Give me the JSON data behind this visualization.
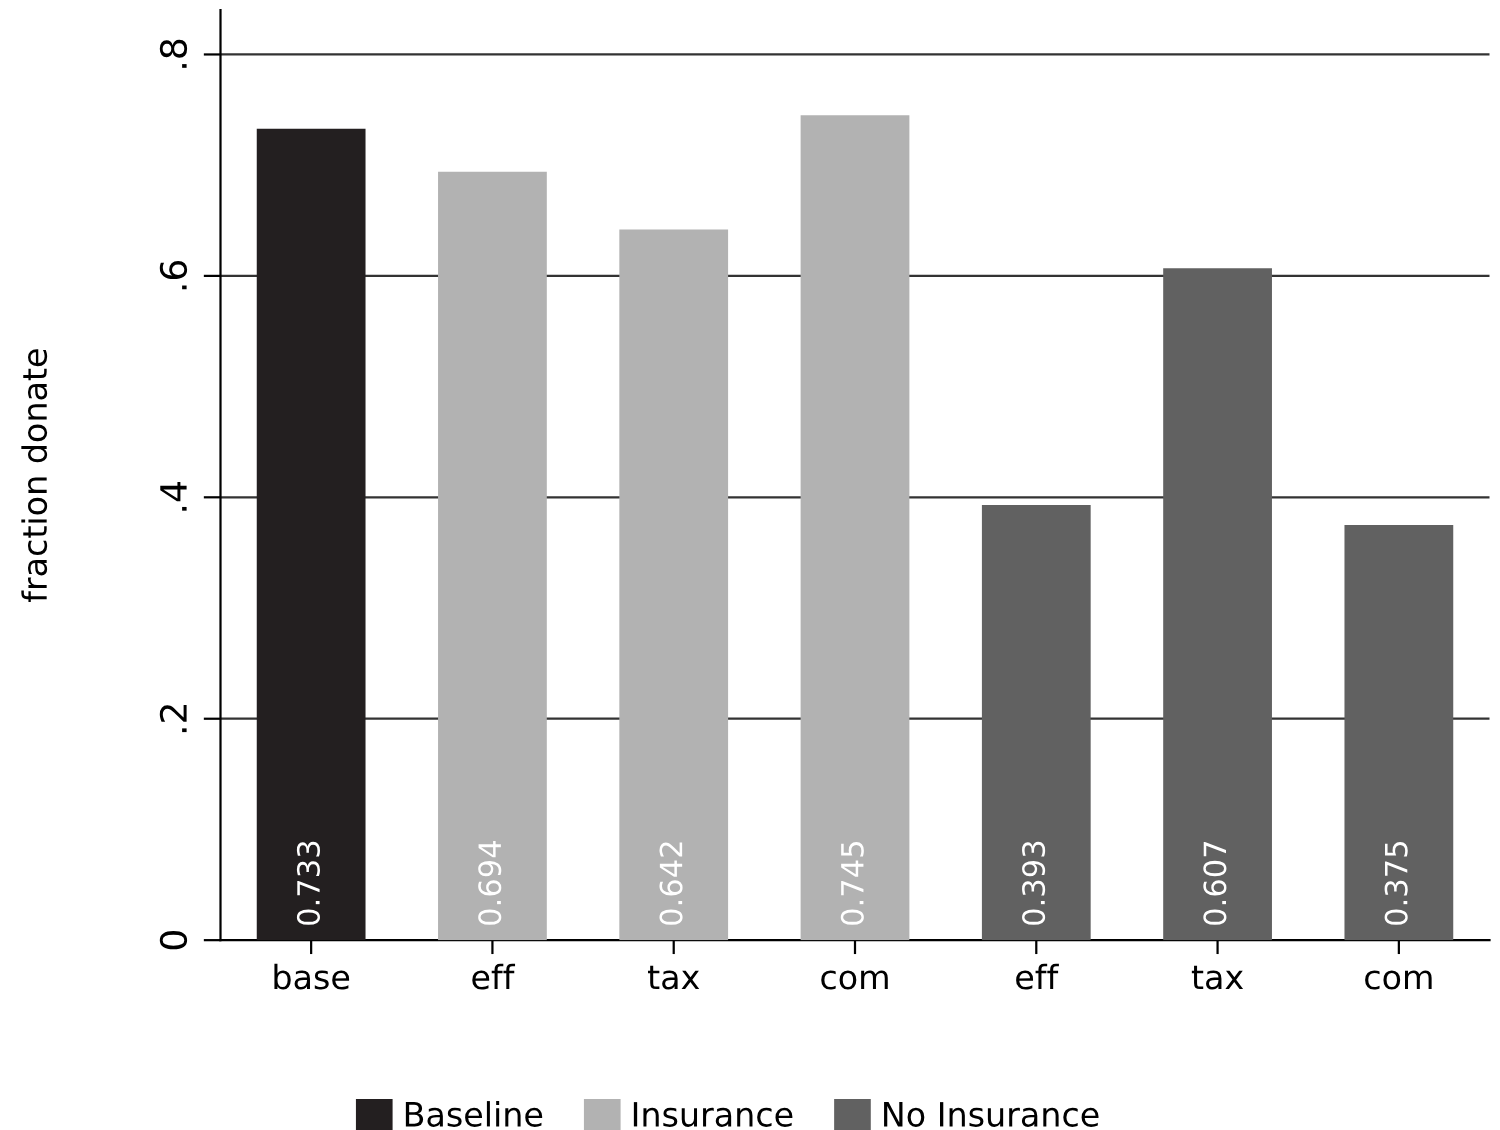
{
  "chart_data": {
    "type": "bar",
    "ylabel": "fraction donate",
    "categories": [
      "base",
      "eff",
      "tax",
      "com",
      "eff",
      "tax",
      "com"
    ],
    "series": [
      {
        "name": "Baseline",
        "color": "#231f20",
        "values": [
          0.733,
          null,
          null,
          null,
          null,
          null,
          null
        ]
      },
      {
        "name": "Insurance",
        "color": "#b2b2b2",
        "values": [
          null,
          0.694,
          0.642,
          0.745,
          null,
          null,
          null
        ]
      },
      {
        "name": "No Insurance",
        "color": "#616161",
        "values": [
          null,
          null,
          null,
          null,
          0.393,
          0.607,
          0.375
        ]
      }
    ],
    "data_labels": true,
    "ylim": [
      0,
      0.84
    ],
    "yticks": [
      0,
      {
        "value": 0.2,
        "label": ".2"
      },
      {
        "value": 0.4,
        "label": ".4"
      },
      {
        "value": 0.6,
        "label": ".6"
      },
      {
        "value": 0.8,
        "label": ".8"
      }
    ],
    "grid": "y",
    "legend": "bottom"
  }
}
